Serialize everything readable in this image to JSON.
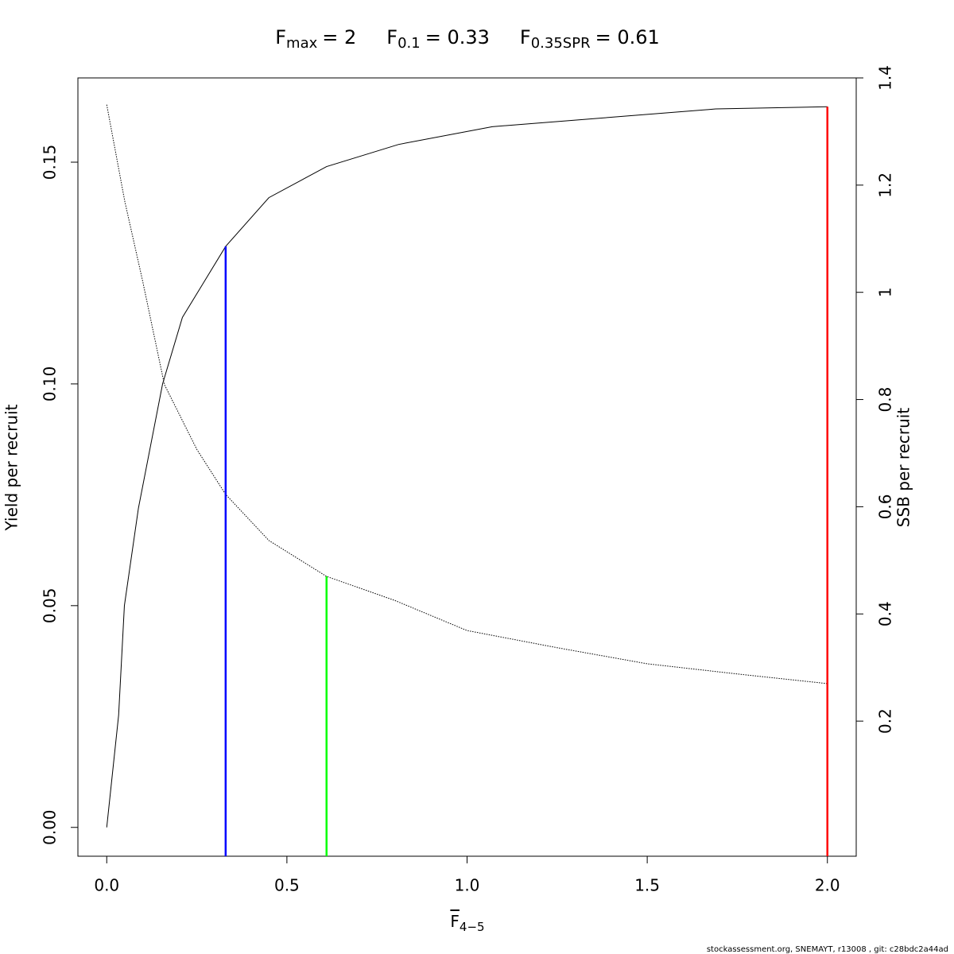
{
  "chart_data": {
    "type": "line",
    "reference_lines": [
      {
        "symbol": "F",
        "subscript": "max",
        "label": "= 2",
        "x": 2,
        "y": 0.1625,
        "axis": "y",
        "color": "#ff0000"
      },
      {
        "symbol": "F",
        "subscript": "0.1",
        "label": "= 0.33",
        "x": 0.33,
        "y": 0.131,
        "axis": "y",
        "color": "#0000ff"
      },
      {
        "symbol": "F",
        "subscript": "0.35SPR",
        "label": "= 0.61",
        "x": 0.61,
        "y": 0.47,
        "axis": "y2",
        "color": "#00ff00"
      }
    ],
    "xlabel": {
      "text": "F",
      "subscript": "4−5"
    },
    "ylabel": "Yield per recruit",
    "y2label": "SSB per recruit",
    "footer": "stockassessment.org, SNEMAYT, r13008 , git: c28bdc2a44ad",
    "xlim": [
      -0.08,
      2.08
    ],
    "ylim": [
      -0.0065,
      0.169
    ],
    "y2lim": [
      -0.052,
      1.4
    ],
    "xticks": [
      {
        "value": 0,
        "label": "0.0"
      },
      0.5,
      {
        "value": 1,
        "label": "1.0"
      },
      1.5,
      {
        "value": 2,
        "label": "2.0"
      }
    ],
    "yticks": [
      {
        "value": 0,
        "label": "0.00"
      },
      0.05,
      {
        "value": 0.1,
        "label": "0.10"
      },
      0.15
    ],
    "y2ticks": [
      0.2,
      0.4,
      0.6,
      0.8,
      1,
      1.2,
      1.4
    ],
    "series": [
      {
        "name": "Yield per recruit",
        "color": "#000000",
        "dash": false,
        "axis": "y",
        "x": [
          0,
          0.033,
          0.049,
          0.088,
          0.155,
          0.21,
          0.33,
          0.45,
          0.61,
          0.81,
          1.07,
          1.38,
          1.69,
          2
        ],
        "values": [
          0,
          0.0253,
          0.05,
          0.072,
          0.1,
          0.115,
          0.131,
          0.142,
          0.149,
          0.154,
          0.158,
          0.16,
          0.162,
          0.1625
        ]
      },
      {
        "name": "SSB per recruit",
        "color": "#000000",
        "dash": true,
        "axis": "y2",
        "x": [
          0,
          0.05,
          0.1,
          0.16,
          0.25,
          0.33,
          0.45,
          0.61,
          0.8,
          1,
          1.25,
          1.5,
          1.75,
          2
        ],
        "values": [
          1.35,
          1.17,
          1.02,
          0.828,
          0.707,
          0.623,
          0.537,
          0.47,
          0.425,
          0.369,
          0.337,
          0.307,
          0.288,
          0.27
        ]
      }
    ]
  }
}
